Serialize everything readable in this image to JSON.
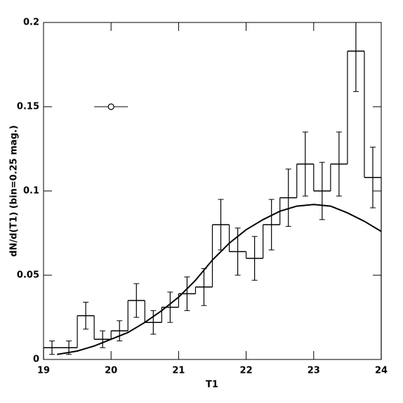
{
  "chart_data": {
    "type": "histogram",
    "xlabel": "T1",
    "ylabel": "dN/d(T1)  (bin=0.25 mag.)",
    "bins": [
      19,
      19.25,
      19.5,
      19.75,
      20,
      20.25,
      20.5,
      20.75,
      21,
      21.25,
      21.5,
      21.75,
      22,
      22.25,
      22.5,
      22.75,
      23,
      23.25,
      23.5,
      23.75,
      24
    ],
    "values": [
      0.007,
      0.007,
      0.026,
      0.012,
      0.017,
      0.035,
      0.022,
      0.031,
      0.039,
      0.043,
      0.08,
      0.064,
      0.06,
      0.08,
      0.096,
      0.116,
      0.1,
      0.116,
      0.183,
      0.108
    ],
    "errors": [
      0.004,
      0.004,
      0.008,
      0.005,
      0.006,
      0.01,
      0.007,
      0.009,
      0.01,
      0.011,
      0.015,
      0.014,
      0.013,
      0.015,
      0.017,
      0.019,
      0.017,
      0.019,
      0.024,
      0.018
    ],
    "curve": {
      "x": [
        19.2,
        19.5,
        19.75,
        20,
        20.25,
        20.5,
        20.75,
        21,
        21.25,
        21.5,
        21.75,
        22,
        22.25,
        22.5,
        22.75,
        23,
        23.25,
        23.5,
        23.75,
        24
      ],
      "y": [
        0.003,
        0.005,
        0.008,
        0.012,
        0.016,
        0.022,
        0.029,
        0.037,
        0.047,
        0.059,
        0.069,
        0.077,
        0.083,
        0.088,
        0.091,
        0.092,
        0.091,
        0.087,
        0.082,
        0.076
      ]
    },
    "reference_point": {
      "x": 20,
      "y": 0.15,
      "xerr": 0.25
    },
    "color": "#000000",
    "xlim": [
      19,
      24
    ],
    "ylim": [
      0,
      0.2
    ],
    "xticks": [
      19,
      20,
      21,
      22,
      23,
      24
    ],
    "yticks": [
      0,
      0.05,
      0.1,
      0.15,
      0.2
    ]
  }
}
